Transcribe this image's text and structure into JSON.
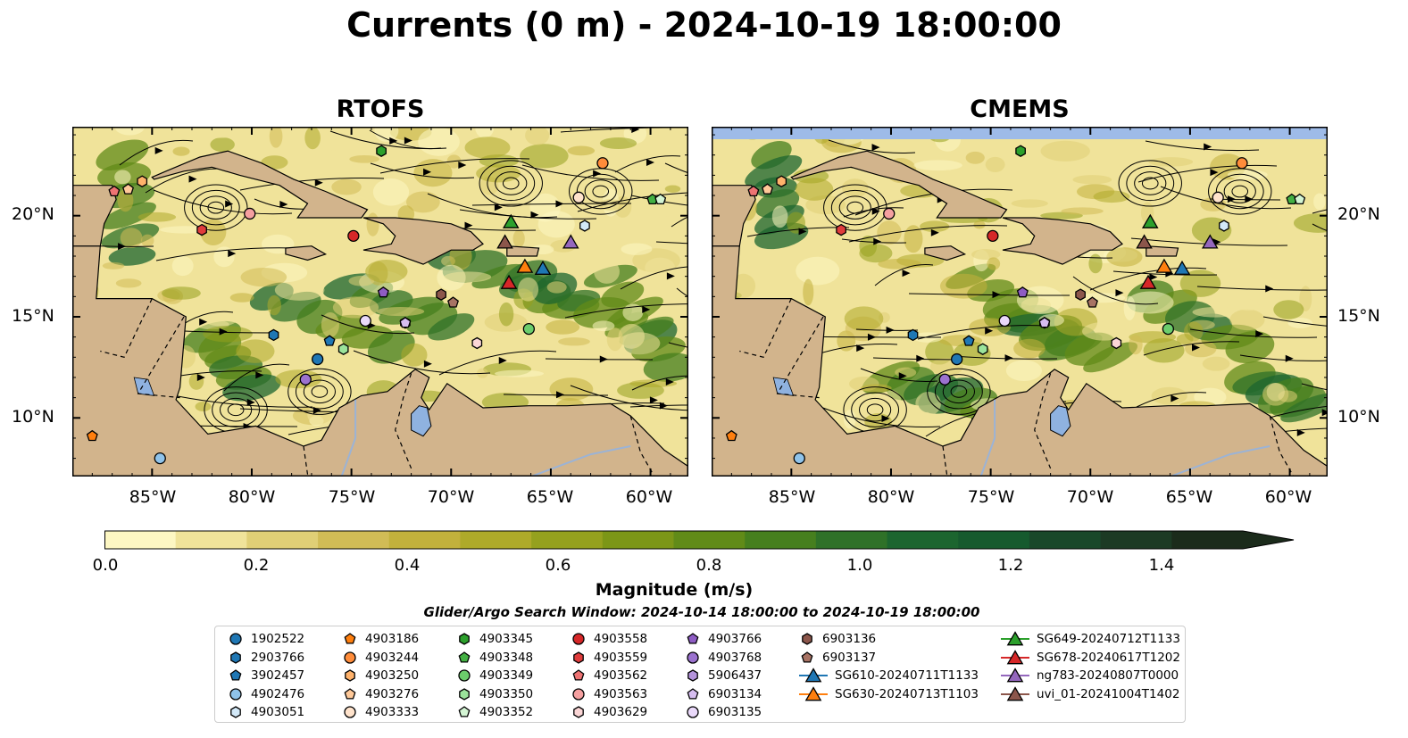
{
  "title": "Currents (0 m) - 2024-10-19 18:00:00",
  "panels": [
    {
      "title": "RTOFS"
    },
    {
      "title": "CMEMS"
    }
  ],
  "lat_ticks": [
    "20°N",
    "15°N",
    "10°N"
  ],
  "lon_ticks": [
    "85°W",
    "80°W",
    "75°W",
    "70°W",
    "65°W",
    "60°W"
  ],
  "colorbar": {
    "label": "Magnitude (m/s)",
    "ticks": [
      "0.0",
      "0.2",
      "0.4",
      "0.6",
      "0.8",
      "1.0",
      "1.2",
      "1.4"
    ],
    "min": 0.0,
    "max": 1.5,
    "extend": "max",
    "colors": [
      "#fdf7c3",
      "#f0e39a",
      "#e0cf76",
      "#d1bc56",
      "#c2b13c",
      "#aeaa2a",
      "#95a11e",
      "#7c9617",
      "#618b18",
      "#467f1e",
      "#2f7128",
      "#1c652f",
      "#165a2e",
      "#19482a",
      "#1c3a24",
      "#1b2b1b"
    ]
  },
  "search_window": "Glider/Argo Search Window: 2024-10-14 18:00:00 to 2024-10-19 18:00:00",
  "colors": {
    "land": "#d2b48c",
    "lake": "#8fb2e0",
    "cmems_nodata": "#9ebbe8"
  },
  "legend": [
    {
      "label": "1902522",
      "marker": "circle",
      "color": "#1f77b4"
    },
    {
      "label": "2903766",
      "marker": "hexagon",
      "color": "#1f77b4"
    },
    {
      "label": "3902457",
      "marker": "pentagon",
      "color": "#1f77b4"
    },
    {
      "label": "4902476",
      "marker": "circle",
      "color": "#8fc3ea"
    },
    {
      "label": "4903051",
      "marker": "hexagon",
      "color": "#d3e9f8"
    },
    {
      "label": "4903186",
      "marker": "pentagon",
      "color": "#ff7f0e"
    },
    {
      "label": "4903244",
      "marker": "circle",
      "color": "#ff8c3a"
    },
    {
      "label": "4903250",
      "marker": "hexagon",
      "color": "#ffb26b"
    },
    {
      "label": "4903276",
      "marker": "pentagon",
      "color": "#ffc999"
    },
    {
      "label": "4903333",
      "marker": "circle",
      "color": "#ffe3cc"
    },
    {
      "label": "4903345",
      "marker": "hexagon",
      "color": "#2ca02c"
    },
    {
      "label": "4903348",
      "marker": "pentagon",
      "color": "#43b043"
    },
    {
      "label": "4903349",
      "marker": "circle",
      "color": "#6ccd6c"
    },
    {
      "label": "4903350",
      "marker": "hexagon",
      "color": "#9be39b"
    },
    {
      "label": "4903352",
      "marker": "pentagon",
      "color": "#d4f5d4"
    },
    {
      "label": "4903558",
      "marker": "circle",
      "color": "#d62728"
    },
    {
      "label": "4903559",
      "marker": "hexagon",
      "color": "#e03c3c"
    },
    {
      "label": "4903562",
      "marker": "pentagon",
      "color": "#ee7373"
    },
    {
      "label": "4903563",
      "marker": "circle",
      "color": "#f5a0a0"
    },
    {
      "label": "4903629",
      "marker": "hexagon",
      "color": "#fbd6d6"
    },
    {
      "label": "4903766",
      "marker": "pentagon",
      "color": "#8e5cc4"
    },
    {
      "label": "4903768",
      "marker": "circle",
      "color": "#9b72cf"
    },
    {
      "label": "5906437",
      "marker": "hexagon",
      "color": "#b493dc"
    },
    {
      "label": "6903134",
      "marker": "pentagon",
      "color": "#d6bdf0"
    },
    {
      "label": "6903135",
      "marker": "circle",
      "color": "#ead9fa"
    },
    {
      "label": "6903136",
      "marker": "hexagon",
      "color": "#8c564b"
    },
    {
      "label": "6903137",
      "marker": "pentagon",
      "color": "#a87364"
    },
    {
      "label": "SG610-20240711T1133",
      "marker": "triangle",
      "color": "#1f77b4"
    },
    {
      "label": "SG630-20240713T1103",
      "marker": "triangle",
      "color": "#ff7f0e"
    },
    {
      "label": "SG649-20240712T1133",
      "marker": "triangle",
      "color": "#2ca02c"
    },
    {
      "label": "SG678-20240617T1202",
      "marker": "triangle",
      "color": "#d62728"
    },
    {
      "label": "ng783-20240807T0000",
      "marker": "triangle",
      "color": "#9467bd"
    },
    {
      "label": "uvi_01-20241004T1402",
      "marker": "triangle",
      "color": "#8c564b"
    }
  ],
  "observations": [
    {
      "label": "1902522",
      "lon": -76.7,
      "lat": 12.9
    },
    {
      "label": "2903766",
      "lon": -78.9,
      "lat": 14.1
    },
    {
      "label": "3902457",
      "lon": -76.1,
      "lat": 13.8
    },
    {
      "label": "4902476",
      "lon": -84.6,
      "lat": 8.0
    },
    {
      "label": "4903051",
      "lon": -63.3,
      "lat": 19.5
    },
    {
      "label": "4903186",
      "lon": -88.0,
      "lat": 9.1
    },
    {
      "label": "4903244",
      "lon": -62.4,
      "lat": 22.6
    },
    {
      "label": "4903250",
      "lon": -85.5,
      "lat": 21.7
    },
    {
      "label": "4903276",
      "lon": -86.2,
      "lat": 21.3
    },
    {
      "label": "4903333",
      "lon": -63.6,
      "lat": 20.9
    },
    {
      "label": "4903345",
      "lon": -73.5,
      "lat": 23.2
    },
    {
      "label": "4903348",
      "lon": -59.9,
      "lat": 20.8
    },
    {
      "label": "4903349",
      "lon": -66.1,
      "lat": 14.4
    },
    {
      "label": "4903350",
      "lon": -75.4,
      "lat": 13.4
    },
    {
      "label": "4903352",
      "lon": -59.5,
      "lat": 20.8
    },
    {
      "label": "4903558",
      "lon": -74.9,
      "lat": 19.0
    },
    {
      "label": "4903559",
      "lon": -82.5,
      "lat": 19.3
    },
    {
      "label": "4903562",
      "lon": -86.9,
      "lat": 21.2
    },
    {
      "label": "4903563",
      "lon": -80.1,
      "lat": 20.1
    },
    {
      "label": "4903629",
      "lon": -68.7,
      "lat": 13.7
    },
    {
      "label": "4903766",
      "lon": -73.4,
      "lat": 16.2
    },
    {
      "label": "4903768",
      "lon": -77.3,
      "lat": 11.9
    },
    {
      "label": "5906437",
      "lon": -72.3,
      "lat": 14.7
    },
    {
      "label": "6903134",
      "lon": -72.3,
      "lat": 14.7
    },
    {
      "label": "6903135",
      "lon": -74.3,
      "lat": 14.8
    },
    {
      "label": "6903136",
      "lon": -70.5,
      "lat": 16.1
    },
    {
      "label": "6903137",
      "lon": -69.9,
      "lat": 15.7
    },
    {
      "label": "SG610-20240711T1133",
      "lon": -65.4,
      "lat": 17.4
    },
    {
      "label": "SG630-20240713T1103",
      "lon": -66.3,
      "lat": 17.5
    },
    {
      "label": "SG649-20240712T1133",
      "lon": -67.0,
      "lat": 19.7
    },
    {
      "label": "SG678-20240617T1202",
      "lon": -67.1,
      "lat": 16.7
    },
    {
      "label": "ng783-20240807T0000",
      "lon": -64.0,
      "lat": 18.7
    },
    {
      "label": "uvi_01-20241004T1402",
      "lon": -67.3,
      "lat": 18.7
    }
  ]
}
